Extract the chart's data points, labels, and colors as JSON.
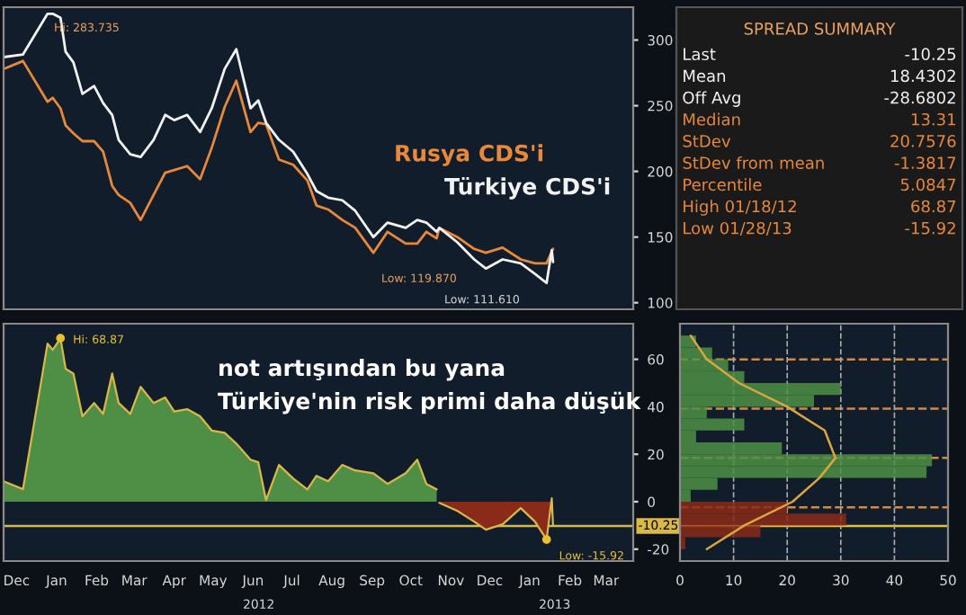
{
  "chart_data": [
    {
      "type": "line",
      "xlim": [
        "2011-12-05",
        "2013-04-05"
      ],
      "ylim": [
        95,
        325
      ],
      "yticks": [
        100,
        150,
        200,
        250,
        300
      ],
      "tick_labels": "y",
      "x": [
        "2011-12-05",
        "2011-12-20",
        "2012-01-08",
        "2012-01-12",
        "2012-01-18",
        "2012-01-22",
        "2012-01-28",
        "2012-02-04",
        "2012-02-13",
        "2012-02-20",
        "2012-02-27",
        "2012-03-03",
        "2012-03-12",
        "2012-03-20",
        "2012-03-30",
        "2012-04-08",
        "2012-04-15",
        "2012-04-25",
        "2012-05-05",
        "2012-05-14",
        "2012-05-24",
        "2012-06-02",
        "2012-06-13",
        "2012-06-19",
        "2012-06-25",
        "2012-07-05",
        "2012-07-16",
        "2012-07-27",
        "2012-08-03",
        "2012-08-12",
        "2012-08-23",
        "2012-09-02",
        "2012-09-16",
        "2012-09-27",
        "2012-10-11",
        "2012-10-20",
        "2012-10-27",
        "2012-11-04",
        "2012-11-06",
        "2012-11-20",
        "2012-12-03",
        "2012-12-12",
        "2012-12-25",
        "2013-01-08",
        "2013-01-19",
        "2013-01-28",
        "2013-02-01",
        "2013-02-02"
      ],
      "series": [
        {
          "name": "Rusya CDS'i",
          "color": "#e8883a",
          "values": [
            278,
            284,
            253,
            256,
            248,
            235,
            229,
            223,
            223,
            215,
            189,
            182,
            176,
            163,
            182,
            199,
            201,
            204,
            194,
            218,
            249,
            269,
            230,
            237,
            236,
            209,
            205,
            193,
            174,
            171,
            163,
            157,
            138,
            154,
            145,
            145,
            154,
            149,
            157,
            150,
            141,
            138,
            142,
            133,
            130,
            130,
            139,
            141
          ]
        },
        {
          "name": "Türkiye CDS'i",
          "color": "#f2f2f2",
          "values": [
            287,
            289,
            320,
            320,
            317,
            291,
            283,
            259,
            265,
            252,
            243,
            224,
            213,
            211,
            224,
            243,
            239,
            243,
            230,
            248,
            278,
            293,
            248,
            254,
            237,
            224,
            215,
            198,
            185,
            180,
            178,
            170,
            150,
            161,
            157,
            163,
            161,
            154,
            157,
            146,
            133,
            126,
            133,
            130,
            122,
            115,
            140,
            131
          ]
        }
      ],
      "annotations": [
        "Hi: 283.735",
        "Low: 119.870",
        "Low: 111.610"
      ]
    },
    {
      "type": "other",
      "title": "SPREAD SUMMARY",
      "categories": [
        "Last",
        "Mean",
        "Off Avg",
        "Median",
        "StDev",
        "StDev from mean",
        "Percentile",
        "High 01/18/12",
        "Low 01/28/13"
      ],
      "value_labels": [
        "-10.25",
        "18.4302",
        "-28.6802",
        "13.31",
        "20.7576",
        "-1.3817",
        "5.0847",
        "68.87",
        "-15.92"
      ]
    },
    {
      "type": "area",
      "xlim": [
        "2011-12-05",
        "2013-04-05"
      ],
      "ylim": [
        -25,
        75
      ],
      "yticks": [
        -20,
        0,
        20,
        40,
        60
      ],
      "xticks": [
        {
          "value": "2011-12-15",
          "label": "Dec"
        },
        {
          "value": "2012-01-15",
          "label": "Jan"
        },
        {
          "value": "2012-02-15",
          "label": "Feb"
        },
        {
          "value": "2012-03-15",
          "label": "Mar"
        },
        {
          "value": "2012-04-15",
          "label": "Apr"
        },
        {
          "value": "2012-05-15",
          "label": "May"
        },
        {
          "value": "2012-06-15",
          "label": "Jun"
        },
        {
          "value": "2012-07-15",
          "label": "Jul"
        },
        {
          "value": "2012-08-15",
          "label": "Aug"
        },
        {
          "value": "2012-09-15",
          "label": "Sep"
        },
        {
          "value": "2012-10-15",
          "label": "Oct"
        },
        {
          "value": "2012-11-15",
          "label": "Nov"
        },
        {
          "value": "2012-12-15",
          "label": "Dec"
        },
        {
          "value": "2013-01-15",
          "label": "Jan"
        },
        {
          "value": "2013-02-15",
          "label": "Feb"
        },
        {
          "value": "2013-03-15",
          "label": "Mar"
        }
      ],
      "x": [
        "2011-12-05",
        "2011-12-20",
        "2012-01-08",
        "2012-01-12",
        "2012-01-18",
        "2012-01-22",
        "2012-01-28",
        "2012-02-04",
        "2012-02-13",
        "2012-02-20",
        "2012-02-27",
        "2012-03-03",
        "2012-03-12",
        "2012-03-20",
        "2012-03-30",
        "2012-04-08",
        "2012-04-15",
        "2012-04-25",
        "2012-05-05",
        "2012-05-14",
        "2012-05-24",
        "2012-06-02",
        "2012-06-13",
        "2012-06-19",
        "2012-06-25",
        "2012-07-05",
        "2012-07-16",
        "2012-07-27",
        "2012-08-03",
        "2012-08-12",
        "2012-08-23",
        "2012-09-02",
        "2012-09-16",
        "2012-09-27",
        "2012-10-11",
        "2012-10-20",
        "2012-10-27",
        "2012-11-04"
      ],
      "series": [
        {
          "color": "#4f8f45",
          "values": [
            8.6,
            5.3,
            66.6,
            64,
            68.87,
            56,
            54,
            36,
            41.6,
            37,
            54,
            41.6,
            37,
            48.4,
            41.6,
            43.9,
            38,
            39,
            36,
            30,
            29,
            24.5,
            17.7,
            16.6,
            0.7,
            15.5,
            9.8,
            5.2,
            10.9,
            8.6,
            15.5,
            13.2,
            12,
            7.5,
            12,
            17.7,
            7.5,
            5.2
          ]
        },
        {
          "color": "#8a2a18",
          "x": [
            "2012-11-06",
            "2012-11-20",
            "2012-12-03",
            "2012-12-12",
            "2012-12-25",
            "2013-01-08",
            "2013-01-19",
            "2013-01-28",
            "2013-02-01",
            "2013-02-02"
          ],
          "values": [
            -0.5,
            -3.9,
            -8.4,
            -11.8,
            -9.5,
            -2.7,
            -8.4,
            -15.92,
            1.5,
            -10.25
          ]
        }
      ],
      "ref_lines": [
        {
          "axis": "y",
          "value": -10.25,
          "label": "-10.25",
          "color": "#d9b84a"
        }
      ],
      "annotations": [
        {
          "text": "Hi: 68.87",
          "x": "2012-01-18",
          "y": 68.87
        },
        {
          "text": "Low: -15.92",
          "x": "2013-01-28",
          "y": -15.92
        },
        "not artışından bu yana",
        "Türkiye'nin risk primi daha düşük",
        "2012",
        "2013"
      ]
    },
    {
      "type": "histogram",
      "orientation": "horizontal",
      "xlim": [
        0,
        50
      ],
      "xticks": [
        0,
        10,
        20,
        30,
        40,
        50
      ],
      "ylim": [
        -25,
        75
      ],
      "tick_labels": "x",
      "grid": "x",
      "bins": [
        -20,
        -15,
        -10,
        -5,
        0,
        5,
        10,
        15,
        20,
        25,
        30,
        35,
        40,
        45,
        50,
        55,
        60,
        65,
        70
      ],
      "values": [
        1,
        15,
        31,
        20,
        2,
        7,
        46,
        47,
        19,
        3,
        12,
        5,
        25,
        30,
        12,
        9,
        6,
        3
      ],
      "colors": [
        "#8a2a18",
        "#8a2a18",
        "#8a2a18",
        "#8a2a18",
        "#4f8f45",
        "#4f8f45",
        "#4f8f45",
        "#4f8f45",
        "#4f8f45",
        "#4f8f45",
        "#4f8f45",
        "#4f8f45",
        "#4f8f45",
        "#4f8f45",
        "#4f8f45",
        "#4f8f45",
        "#4f8f45",
        "#4f8f45"
      ],
      "series": [
        {
          "type": "line",
          "color": "#d9a640",
          "x": [
            -20,
            -10,
            0,
            10,
            18.43,
            30,
            40,
            50,
            60,
            70
          ],
          "values": [
            5,
            12,
            21,
            26,
            29,
            27,
            20,
            11,
            5,
            2
          ]
        }
      ],
      "ref_lines": [
        {
          "axis": "y",
          "value": 59.95,
          "color": "#d9883a",
          "line_style": "dashed"
        },
        {
          "axis": "y",
          "value": 39.19,
          "color": "#d9883a",
          "line_style": "dashed"
        },
        {
          "axis": "y",
          "value": 18.43,
          "color": "#d9883a",
          "line_style": "dashed"
        },
        {
          "axis": "y",
          "value": -2.33,
          "color": "#d9883a",
          "line_style": "dashed"
        },
        {
          "axis": "y",
          "value": -10.25,
          "color": "#e8c030",
          "line_style": "solid"
        }
      ]
    }
  ]
}
